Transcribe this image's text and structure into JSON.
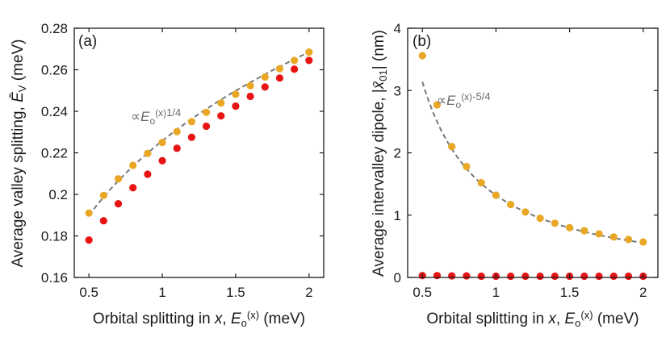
{
  "chart_data": [
    {
      "type": "scatter",
      "panel_label": "(a)",
      "xlabel": {
        "pre": "Orbital splitting in ",
        "var": "x",
        "mid": ", ",
        "sym": "E",
        "sub": "o",
        "sup": "(x)",
        "post": " (meV)"
      },
      "ylabel": {
        "pre": "Average valley splitting, ",
        "sym": "Ē",
        "sub": "V",
        "post": " (meV)"
      },
      "xlim": [
        0.4,
        2.1
      ],
      "ylim": [
        0.16,
        0.28
      ],
      "xticks": [
        0.5,
        1,
        1.5,
        2
      ],
      "xtick_labels": [
        "0.5",
        "1",
        "1.5",
        "2"
      ],
      "yticks": [
        0.16,
        0.18,
        0.2,
        0.22,
        0.24,
        0.26,
        0.28
      ],
      "ytick_labels": [
        "0.16",
        "0.18",
        "0.2",
        "0.22",
        "0.24",
        "0.26",
        "0.28"
      ],
      "grid": false,
      "x": [
        0.5,
        0.6,
        0.7,
        0.8,
        0.9,
        1.0,
        1.1,
        1.2,
        1.3,
        1.4,
        1.5,
        1.6,
        1.7,
        1.8,
        1.9,
        2.0
      ],
      "series": [
        {
          "color": "#e8a826",
          "values": [
            0.191,
            0.1995,
            0.2075,
            0.214,
            0.2197,
            0.225,
            0.2302,
            0.235,
            0.2395,
            0.244,
            0.2482,
            0.2523,
            0.2565,
            0.2605,
            0.2645,
            0.2685
          ]
        },
        {
          "color": "#e81414",
          "values": [
            0.178,
            0.1873,
            0.1955,
            0.2032,
            0.2097,
            0.2162,
            0.2222,
            0.2275,
            0.2328,
            0.2378,
            0.2425,
            0.2472,
            0.2517,
            0.256,
            0.2603,
            0.2645
          ]
        }
      ],
      "fit": {
        "color": "#777777",
        "dashed": true,
        "form": "power",
        "exponent": 0.25,
        "anchor": [
          2.0,
          0.2685
        ]
      },
      "annotation": {
        "prefix": "∝",
        "sym": "E",
        "sub": "o",
        "arg": "(x)",
        "exp": "1/4"
      }
    },
    {
      "type": "scatter",
      "panel_label": "(b)",
      "xlabel": {
        "pre": "Orbital splitting in ",
        "var": "x",
        "mid": ", ",
        "sym": "E",
        "sub": "o",
        "sup": "(x)",
        "post": " (meV)"
      },
      "ylabel": {
        "pre": "Average intervalley dipole, |",
        "sym": "x̄",
        "sub": "01",
        "post": "| (nm)"
      },
      "xlim": [
        0.4,
        2.1
      ],
      "ylim": [
        0,
        4
      ],
      "xticks": [
        0.5,
        1,
        1.5,
        2
      ],
      "xtick_labels": [
        "0.5",
        "1",
        "1.5",
        "2"
      ],
      "yticks": [
        0,
        1,
        2,
        3,
        4
      ],
      "ytick_labels": [
        "0",
        "1",
        "2",
        "3",
        "4"
      ],
      "grid": false,
      "x": [
        0.5,
        0.6,
        0.7,
        0.8,
        0.9,
        1.0,
        1.1,
        1.2,
        1.3,
        1.4,
        1.5,
        1.6,
        1.7,
        1.8,
        1.9,
        2.0
      ],
      "series": [
        {
          "color": "#e8a826",
          "values": [
            3.56,
            2.77,
            2.1,
            1.78,
            1.52,
            1.32,
            1.17,
            1.05,
            0.95,
            0.87,
            0.8,
            0.75,
            0.7,
            0.65,
            0.61,
            0.57
          ]
        },
        {
          "color": "#e81414",
          "values": [
            0.03,
            0.03,
            0.025,
            0.025,
            0.02,
            0.02,
            0.02,
            0.02,
            0.02,
            0.02,
            0.02,
            0.02,
            0.02,
            0.02,
            0.02,
            0.02
          ]
        }
      ],
      "fit": {
        "color": "#777777",
        "dashed": true,
        "form": "power",
        "exponent": -1.25,
        "anchor": [
          1.0,
          1.32
        ]
      },
      "annotation": {
        "prefix": "∝",
        "sym": "E",
        "sub": "o",
        "arg": "(x)",
        "exp": "-5/4"
      }
    }
  ]
}
